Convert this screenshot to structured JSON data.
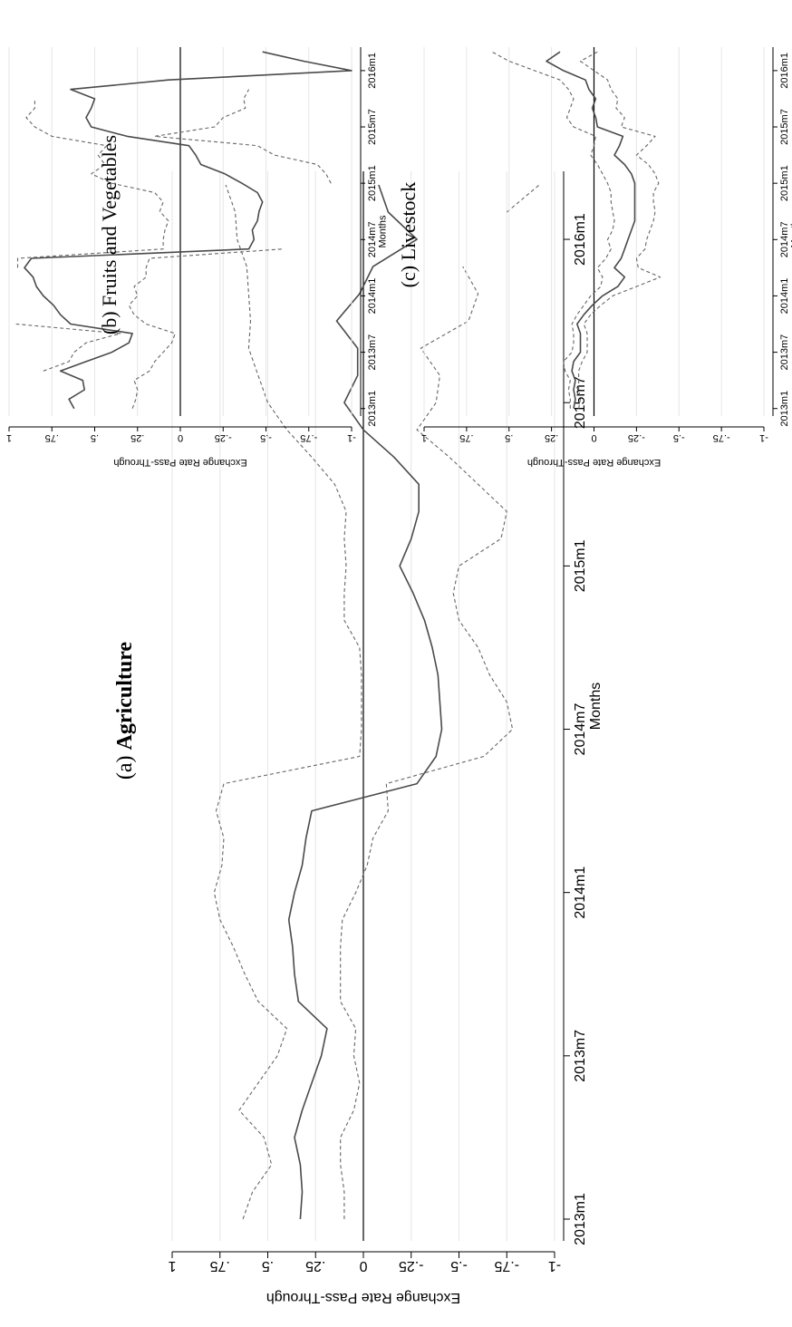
{
  "figure": {
    "rotation": "90deg-counterclockwise"
  },
  "colors": {
    "estimate_line": "#4a4a4a",
    "ci_line": "#666666",
    "zero_line": "#000000",
    "grid": "#e6e6e6",
    "axis": "#000000"
  },
  "chart_data": [
    {
      "panel": "a",
      "type": "line",
      "title": "(a) Agriculture",
      "title_bold": "Agriculture",
      "title_prefix": "(a) ",
      "xlabel": "Months",
      "ylabel": "Exchange Rate Pass-Through",
      "ylim": [
        -1,
        1
      ],
      "yticks": [
        -1,
        -0.75,
        -0.5,
        -0.25,
        0,
        0.25,
        0.5,
        0.75,
        1
      ],
      "ytick_labels": [
        "-1",
        "-.75",
        "-.5",
        "-.25",
        "0",
        ".25",
        ".5",
        ".75",
        "1"
      ],
      "xlim": [
        2012.917,
        2016.333
      ],
      "xticks": [
        "2013m1",
        "2013m7",
        "2014m1",
        "2014m7",
        "2015m1",
        "2015m7",
        "2016m1"
      ],
      "grid": true,
      "months": [
        "2013m1",
        "2013m2",
        "2013m3",
        "2013m4",
        "2013m5",
        "2013m6",
        "2013m7",
        "2013m8",
        "2013m9",
        "2013m10",
        "2013m11",
        "2013m12",
        "2014m1",
        "2014m2",
        "2014m3",
        "2014m4",
        "2014m5",
        "2014m6",
        "2014m7",
        "2014m8",
        "2014m9",
        "2014m10",
        "2014m11",
        "2014m12",
        "2015m1",
        "2015m2",
        "2015m3",
        "2015m4",
        "2015m5",
        "2015m6",
        "2015m7",
        "2015m8",
        "2015m9",
        "2015m10",
        "2015m11",
        "2015m12",
        "2016m1",
        "2016m2",
        "2016m3"
      ],
      "series": [
        {
          "role": "estimate",
          "style": "solid",
          "values": [
            0.33,
            0.32,
            0.33,
            0.36,
            0.32,
            0.27,
            0.22,
            0.19,
            0.34,
            0.36,
            0.37,
            0.39,
            0.36,
            0.32,
            0.3,
            0.27,
            -0.28,
            -0.38,
            -0.41,
            -0.4,
            -0.39,
            -0.36,
            -0.32,
            -0.26,
            -0.19,
            -0.25,
            -0.29,
            -0.29,
            -0.16,
            0.0,
            0.1,
            0.03,
            0.03,
            0.14,
            0.02,
            -0.05,
            -0.28,
            -0.13,
            -0.08
          ]
        },
        {
          "role": "ci_upper",
          "style": "dashed",
          "values": [
            0.63,
            0.58,
            0.48,
            0.52,
            0.65,
            0.55,
            0.45,
            0.4,
            0.55,
            0.62,
            0.68,
            0.75,
            0.78,
            0.74,
            0.73,
            0.77,
            0.73,
            0.02,
            0.01,
            0.01,
            0.01,
            0.02,
            0.1,
            0.1,
            0.09,
            0.1,
            0.09,
            0.15,
            0.27,
            0.4,
            0.5,
            0.55,
            0.6,
            0.59,
            0.6,
            0.61,
            0.66,
            0.67,
            0.72
          ]
        },
        {
          "role": "ci_lower",
          "style": "dashed",
          "values": [
            0.1,
            0.1,
            0.12,
            0.12,
            0.05,
            0.02,
            0.05,
            0.04,
            0.12,
            0.12,
            0.12,
            0.11,
            0.04,
            -0.02,
            -0.05,
            -0.13,
            -0.12,
            -0.63,
            -0.78,
            -0.75,
            -0.66,
            -0.6,
            -0.5,
            -0.47,
            -0.5,
            -0.72,
            -0.75,
            -0.6,
            -0.45,
            -0.28,
            -0.38,
            -0.4,
            -0.3,
            -0.55,
            -0.6,
            -0.52,
            null,
            -0.75,
            -0.92
          ]
        }
      ]
    },
    {
      "panel": "b",
      "type": "line",
      "title": "(b) Fruits and Vegetables",
      "xlabel": "Months",
      "ylabel": "Exchange Rate Pass-Through",
      "ylim": [
        -1,
        1
      ],
      "yticks": [
        -1,
        -0.75,
        -0.5,
        -0.25,
        0,
        0.25,
        0.5,
        0.75,
        1
      ],
      "ytick_labels": [
        "-1",
        "-.75",
        "-.5",
        "-.25",
        "0",
        ".25",
        ".5",
        ".75",
        "1"
      ],
      "xlim": [
        2012.917,
        2016.333
      ],
      "xticks": [
        "2013m1",
        "2013m7",
        "2014m1",
        "2014m7",
        "2015m1",
        "2015m7",
        "2016m1"
      ],
      "grid": true,
      "months": [
        "2013m1",
        "2013m2",
        "2013m3",
        "2013m4",
        "2013m5",
        "2013m6",
        "2013m7",
        "2013m8",
        "2013m9",
        "2013m10",
        "2013m11",
        "2013m12",
        "2014m1",
        "2014m2",
        "2014m3",
        "2014m4",
        "2014m5",
        "2014m6",
        "2014m7",
        "2014m8",
        "2014m9",
        "2014m10",
        "2014m11",
        "2014m12",
        "2015m1",
        "2015m2",
        "2015m3",
        "2015m4",
        "2015m5",
        "2015m6",
        "2015m7",
        "2015m8",
        "2015m9",
        "2015m10",
        "2015m11",
        "2015m12",
        "2016m1",
        "2016m2",
        "2016m3"
      ],
      "series": [
        {
          "role": "estimate",
          "style": "solid",
          "values": [
            0.62,
            0.65,
            0.56,
            0.57,
            0.7,
            0.55,
            0.4,
            0.3,
            0.28,
            0.64,
            0.7,
            0.74,
            0.8,
            0.84,
            0.86,
            0.91,
            0.87,
            -0.4,
            -0.43,
            -0.42,
            -0.45,
            -0.46,
            -0.48,
            -0.45,
            -0.36,
            -0.26,
            -0.12,
            -0.09,
            -0.05,
            0.31,
            0.52,
            0.55,
            0.52,
            0.5,
            0.64,
            0.07,
            -1.0,
            -0.72,
            -0.48
          ]
        },
        {
          "role": "ci_upper",
          "style": "dashed",
          "values": [
            null,
            0.88,
            null,
            null,
            0.8,
            0.65,
            0.62,
            0.55,
            0.35,
            0.96,
            null,
            null,
            null,
            null,
            null,
            0.95,
            0.95,
            0.1,
            0.1,
            0.09,
            0.07,
            0.12,
            0.1,
            0.15,
            0.4,
            0.52,
            0.44,
            0.48,
            0.43,
            0.75,
            0.85,
            0.9,
            0.85,
            0.85,
            null,
            null,
            null,
            null,
            null
          ]
        },
        {
          "role": "ci_lower",
          "style": "dashed",
          "values": [
            0.28,
            0.26,
            0.25,
            0.27,
            0.18,
            0.15,
            0.1,
            0.05,
            0.03,
            0.2,
            0.27,
            0.3,
            0.25,
            0.27,
            0.2,
            0.2,
            0.18,
            -0.6,
            null,
            null,
            null,
            null,
            null,
            null,
            -0.88,
            -0.85,
            -0.8,
            -0.55,
            -0.45,
            0.15,
            -0.2,
            -0.25,
            -0.38,
            -0.37,
            -0.4,
            null,
            null,
            null,
            null
          ]
        }
      ]
    },
    {
      "panel": "c",
      "type": "line",
      "title": "(c) Livestock",
      "xlabel": "Months",
      "ylabel": "Exchange Rate Pass-Through",
      "ylim": [
        -1,
        1
      ],
      "yticks": [
        -1,
        -0.75,
        -0.5,
        -0.25,
        0,
        0.25,
        0.5,
        0.75,
        1
      ],
      "ytick_labels": [
        "-1",
        "-.75",
        "-.5",
        "-.25",
        "0",
        ".25",
        ".5",
        ".75",
        "1"
      ],
      "xlim": [
        2012.917,
        2016.333
      ],
      "xticks": [
        "2013m1",
        "2013m7",
        "2014m1",
        "2014m7",
        "2015m1",
        "2015m7",
        "2016m1"
      ],
      "grid": true,
      "months": [
        "2013m1",
        "2013m2",
        "2013m3",
        "2013m4",
        "2013m5",
        "2013m6",
        "2013m7",
        "2013m8",
        "2013m9",
        "2013m10",
        "2013m11",
        "2013m12",
        "2014m1",
        "2014m2",
        "2014m3",
        "2014m4",
        "2014m5",
        "2014m6",
        "2014m7",
        "2014m8",
        "2014m9",
        "2014m10",
        "2014m11",
        "2014m12",
        "2015m1",
        "2015m2",
        "2015m3",
        "2015m4",
        "2015m5",
        "2015m6",
        "2015m7",
        "2015m8",
        "2015m9",
        "2015m10",
        "2015m11",
        "2015m12",
        "2016m1",
        "2016m2",
        "2016m3"
      ],
      "series": [
        {
          "role": "estimate",
          "style": "solid",
          "values": [
            0.12,
            0.11,
            0.12,
            0.11,
            0.13,
            0.12,
            0.08,
            0.08,
            0.08,
            0.1,
            0.06,
            0.01,
            -0.05,
            -0.14,
            -0.18,
            -0.12,
            -0.16,
            -0.18,
            -0.2,
            -0.22,
            -0.24,
            -0.24,
            -0.24,
            -0.24,
            -0.24,
            -0.22,
            -0.18,
            -0.12,
            -0.15,
            -0.17,
            -0.02,
            -0.01,
            0.01,
            -0.01,
            0.03,
            0.05,
            0.18,
            0.28,
            0.2
          ]
        },
        {
          "role": "ci_upper",
          "style": "dashed",
          "values": [
            0.14,
            0.14,
            0.15,
            0.14,
            0.17,
            0.18,
            0.13,
            0.12,
            0.12,
            0.13,
            0.1,
            0.06,
            0.02,
            -0.04,
            -0.05,
            -0.02,
            -0.07,
            -0.1,
            -0.08,
            -0.11,
            -0.12,
            -0.11,
            -0.1,
            -0.1,
            -0.08,
            -0.05,
            -0.02,
            0.02,
            0.0,
            -0.01,
            0.12,
            0.16,
            0.14,
            0.12,
            0.15,
            0.2,
            0.35,
            0.5,
            0.6
          ]
        },
        {
          "role": "ci_lower",
          "style": "dashed",
          "values": [
            0.09,
            0.08,
            0.09,
            0.09,
            0.09,
            0.07,
            0.04,
            0.04,
            0.04,
            0.06,
            0.02,
            -0.04,
            -0.11,
            -0.25,
            -0.39,
            -0.26,
            -0.25,
            -0.3,
            -0.31,
            -0.33,
            -0.35,
            -0.36,
            -0.35,
            -0.35,
            -0.38,
            -0.36,
            -0.32,
            -0.25,
            -0.31,
            -0.36,
            -0.16,
            -0.18,
            -0.13,
            -0.14,
            -0.1,
            -0.08,
            0.0,
            0.08,
            -0.02
          ]
        }
      ]
    }
  ]
}
